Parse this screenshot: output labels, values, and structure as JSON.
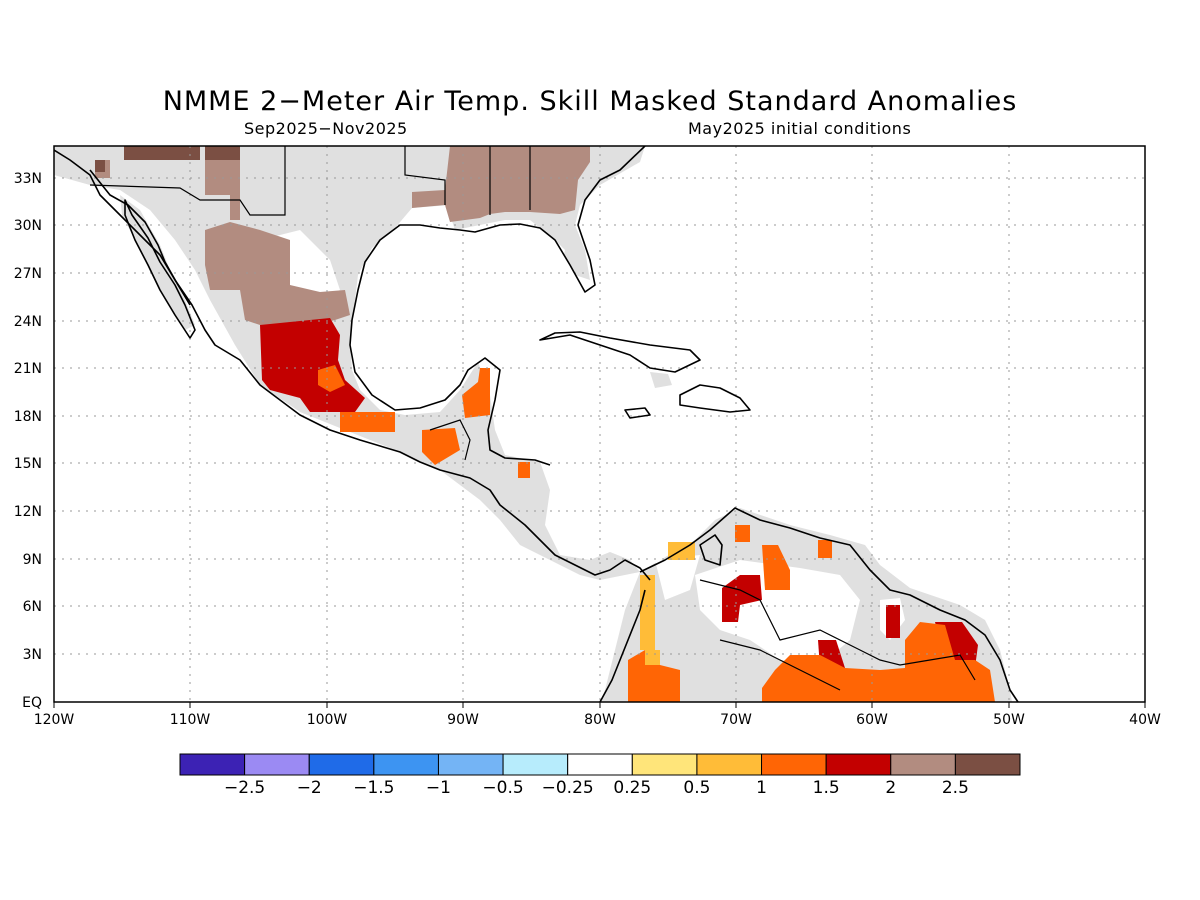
{
  "title": "NMME 2−Meter Air Temp. Skill Masked Standard Anomalies",
  "subtitle_left": "Sep2025−Nov2025",
  "subtitle_right": "May2025 initial conditions",
  "lat_labels": [
    "33N",
    "30N",
    "27N",
    "24N",
    "21N",
    "18N",
    "15N",
    "12N",
    "9N",
    "6N",
    "3N",
    "EQ"
  ],
  "lon_labels": [
    "120W",
    "110W",
    "100W",
    "90W",
    "80W",
    "70W",
    "60W",
    "50W",
    "40W"
  ],
  "colors": {
    "land_no_skill": "#e0e0e0",
    "ocean": "#ffffff",
    "coast": "#000000"
  },
  "colorbar": {
    "colors": [
      "#3c22b4",
      "#9b8af3",
      "#1f6be8",
      "#3d94f2",
      "#74b4f5",
      "#b7ecfc",
      "#ffffff",
      "#ffe57a",
      "#ffbc38",
      "#ff6505",
      "#c30000",
      "#b28c80",
      "#7b4f43"
    ],
    "labels": [
      "−2.5",
      "−2",
      "−1.5",
      "−1",
      "−0.5",
      "−0.25",
      "0.25",
      "0.5",
      "1",
      "1.5",
      "2",
      "2.5"
    ]
  }
}
